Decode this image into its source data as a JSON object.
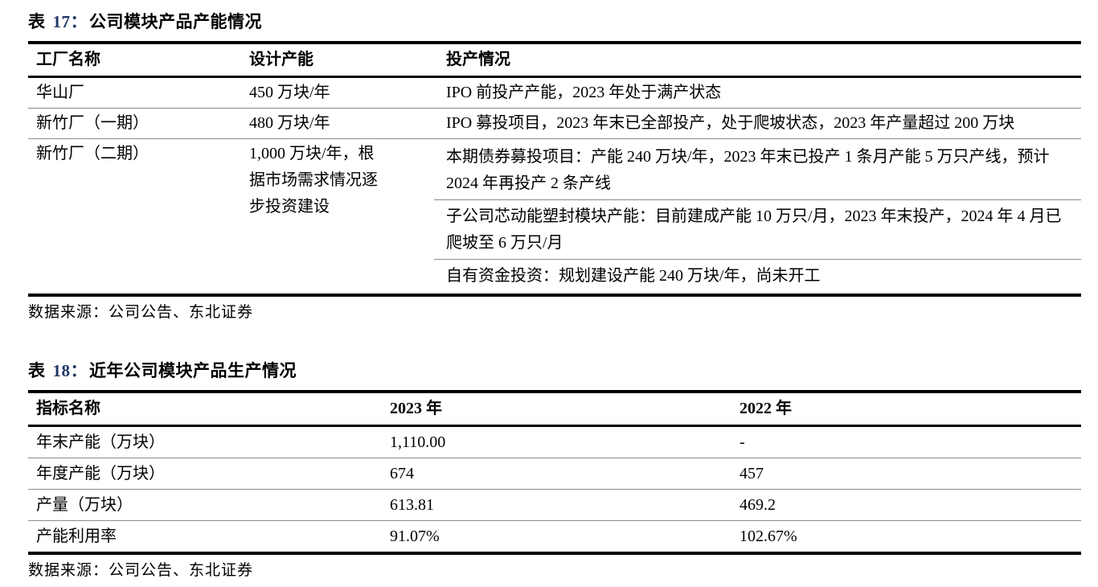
{
  "table17": {
    "title_label": "表",
    "title_number": "17：",
    "title_text": "公司模块产品产能情况",
    "headers": [
      "工厂名称",
      "设计产能",
      "投产情况"
    ],
    "rows": [
      {
        "factory": "华山厂",
        "capacity": "450 万块/年",
        "status": [
          "IPO 前投产产能，2023 年处于满产状态"
        ]
      },
      {
        "factory": "新竹厂（一期）",
        "capacity": "480 万块/年",
        "status": [
          "IPO 募投项目，2023 年末已全部投产，处于爬坡状态，2023 年产量超过 200 万块"
        ]
      },
      {
        "factory": "新竹厂（二期）",
        "capacity": "1,000 万块/年，根据市场需求情况逐步投资建设",
        "status": [
          "本期债券募投项目：产能 240 万块/年，2023 年末已投产 1 条月产能 5 万只产线，预计 2024 年再投产 2 条产线",
          "子公司芯动能塑封模块产能：目前建成产能 10 万只/月，2023 年末投产，2024 年 4 月已爬坡至 6 万只/月",
          "自有资金投资：规划建设产能 240 万块/年，尚未开工"
        ]
      }
    ],
    "source": "数据来源：公司公告、东北证券"
  },
  "table18": {
    "title_label": "表",
    "title_number": "18：",
    "title_text": "近年公司模块产品生产情况",
    "headers": [
      "指标名称",
      "2023 年",
      "2022 年"
    ],
    "rows": [
      {
        "metric": "年末产能（万块）",
        "y2023": "1,110.00",
        "y2022": "-"
      },
      {
        "metric": "年度产能（万块）",
        "y2023": "674",
        "y2022": "457"
      },
      {
        "metric": "产量（万块）",
        "y2023": "613.81",
        "y2022": "469.2"
      },
      {
        "metric": "产能利用率",
        "y2023": "91.07%",
        "y2022": "102.67%"
      }
    ],
    "source": "数据来源：公司公告、东北证券"
  },
  "colors": {
    "title_number_accent": "#1f3864",
    "rule_heavy": "#000000",
    "rule_light": "#8c8c8c"
  }
}
